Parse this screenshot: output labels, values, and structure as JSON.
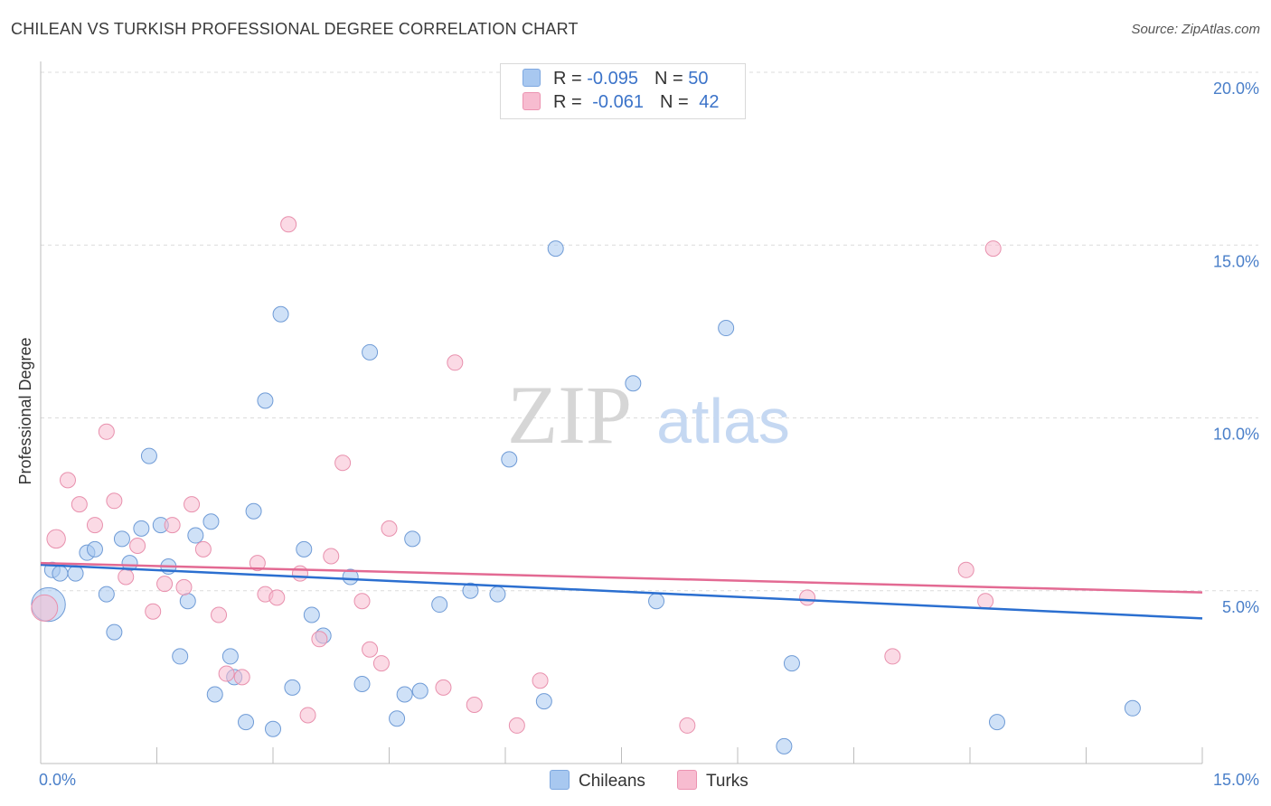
{
  "title": "CHILEAN VS TURKISH PROFESSIONAL DEGREE CORRELATION CHART",
  "source": "Source: ZipAtlas.com",
  "watermark": {
    "zip": "ZIP",
    "atlas": "atlas"
  },
  "legend": {
    "rows": [
      {
        "r_label": "R = ",
        "r_value": "-0.095",
        "n_label": "N = ",
        "n_value": "50",
        "color": "#a8c8f0",
        "border": "#7ea8e0"
      },
      {
        "r_label": "R = ",
        "r_value": "-0.061",
        "n_label": "N = ",
        "n_value": "42",
        "color": "#f7bcd0",
        "border": "#ec93b1"
      }
    ]
  },
  "bottom_legend": {
    "chileans": "Chileans",
    "turks": "Turks"
  },
  "chart_data": {
    "type": "scatter",
    "title": "CHILEAN VS TURKISH PROFESSIONAL DEGREE CORRELATION CHART",
    "ylabel": "Professional Degree",
    "xlabel": "",
    "xlim": [
      0,
      15
    ],
    "ylim": [
      0,
      20
    ],
    "x_tick_labels": [
      {
        "value": 0,
        "label": "0.0%"
      },
      {
        "value": 15,
        "label": "15.0%"
      }
    ],
    "y_tick_labels": [
      {
        "value": 5,
        "label": "5.0%"
      },
      {
        "value": 10,
        "label": "10.0%"
      },
      {
        "value": 15,
        "label": "15.0%"
      },
      {
        "value": 20,
        "label": "20.0%"
      }
    ],
    "series": [
      {
        "name": "Chileans",
        "color": "#a8c8f0",
        "stroke": "#6f9bd6",
        "trend_color": "#2b6fd0",
        "trend": [
          [
            0,
            5.75
          ],
          [
            15,
            4.2
          ]
        ],
        "points": [
          [
            0.1,
            4.6,
            2.2
          ],
          [
            0.15,
            5.6,
            1
          ],
          [
            0.25,
            5.5,
            1
          ],
          [
            0.45,
            5.5,
            1
          ],
          [
            0.6,
            6.1,
            1
          ],
          [
            0.7,
            6.2,
            1
          ],
          [
            0.85,
            4.9,
            1
          ],
          [
            0.95,
            3.8,
            1
          ],
          [
            1.05,
            6.5,
            1
          ],
          [
            1.15,
            5.8,
            1
          ],
          [
            1.3,
            6.8,
            1
          ],
          [
            1.4,
            8.9,
            1
          ],
          [
            1.55,
            6.9,
            1
          ],
          [
            1.65,
            5.7,
            1
          ],
          [
            1.8,
            3.1,
            1
          ],
          [
            1.9,
            4.7,
            1
          ],
          [
            2.0,
            6.6,
            1
          ],
          [
            2.2,
            7.0,
            1
          ],
          [
            2.25,
            2.0,
            1
          ],
          [
            2.45,
            3.1,
            1
          ],
          [
            2.5,
            2.5,
            1
          ],
          [
            2.65,
            1.2,
            1
          ],
          [
            2.75,
            7.3,
            1
          ],
          [
            2.9,
            10.5,
            1
          ],
          [
            3.0,
            1.0,
            1
          ],
          [
            3.1,
            13.0,
            1
          ],
          [
            3.25,
            2.2,
            1
          ],
          [
            3.4,
            6.2,
            1
          ],
          [
            3.5,
            4.3,
            1
          ],
          [
            3.65,
            3.7,
            1
          ],
          [
            4.0,
            5.4,
            1
          ],
          [
            4.15,
            2.3,
            1
          ],
          [
            4.25,
            11.9,
            1
          ],
          [
            4.6,
            1.3,
            1
          ],
          [
            4.7,
            2.0,
            1
          ],
          [
            4.8,
            6.5,
            1
          ],
          [
            4.9,
            2.1,
            1
          ],
          [
            5.15,
            4.6,
            1
          ],
          [
            5.55,
            5.0,
            1
          ],
          [
            5.9,
            4.9,
            1
          ],
          [
            6.05,
            8.8,
            1
          ],
          [
            6.5,
            1.8,
            1
          ],
          [
            6.65,
            14.9,
            1
          ],
          [
            7.65,
            11.0,
            1
          ],
          [
            7.95,
            4.7,
            1
          ],
          [
            8.85,
            12.6,
            1
          ],
          [
            9.7,
            2.9,
            1
          ],
          [
            9.6,
            0.5,
            1
          ],
          [
            12.35,
            1.2,
            1
          ],
          [
            14.1,
            1.6,
            1
          ]
        ]
      },
      {
        "name": "Turks",
        "color": "#f7bcd0",
        "stroke": "#e890ad",
        "trend_color": "#e36a93",
        "trend": [
          [
            0,
            5.8
          ],
          [
            15,
            4.95
          ]
        ],
        "points": [
          [
            0.05,
            4.5,
            1.7
          ],
          [
            0.2,
            6.5,
            1.2
          ],
          [
            0.35,
            8.2,
            1
          ],
          [
            0.5,
            7.5,
            1
          ],
          [
            0.7,
            6.9,
            1
          ],
          [
            0.85,
            9.6,
            1
          ],
          [
            0.95,
            7.6,
            1
          ],
          [
            1.1,
            5.4,
            1
          ],
          [
            1.25,
            6.3,
            1
          ],
          [
            1.45,
            4.4,
            1
          ],
          [
            1.6,
            5.2,
            1
          ],
          [
            1.7,
            6.9,
            1
          ],
          [
            1.85,
            5.1,
            1
          ],
          [
            1.95,
            7.5,
            1
          ],
          [
            2.1,
            6.2,
            1
          ],
          [
            2.3,
            4.3,
            1
          ],
          [
            2.4,
            2.6,
            1
          ],
          [
            2.6,
            2.5,
            1
          ],
          [
            2.8,
            5.8,
            1
          ],
          [
            2.9,
            4.9,
            1
          ],
          [
            3.05,
            4.8,
            1
          ],
          [
            3.2,
            15.6,
            1
          ],
          [
            3.35,
            5.5,
            1
          ],
          [
            3.45,
            1.4,
            1
          ],
          [
            3.6,
            3.6,
            1
          ],
          [
            3.75,
            6.0,
            1
          ],
          [
            3.9,
            8.7,
            1
          ],
          [
            4.15,
            4.7,
            1
          ],
          [
            4.25,
            3.3,
            1
          ],
          [
            4.4,
            2.9,
            1
          ],
          [
            4.5,
            6.8,
            1
          ],
          [
            5.2,
            2.2,
            1
          ],
          [
            5.35,
            11.6,
            1
          ],
          [
            5.6,
            1.7,
            1
          ],
          [
            6.15,
            1.1,
            1
          ],
          [
            6.45,
            2.4,
            1
          ],
          [
            8.35,
            1.1,
            1
          ],
          [
            9.9,
            4.8,
            1
          ],
          [
            11.0,
            3.1,
            1
          ],
          [
            11.95,
            5.6,
            1
          ],
          [
            12.2,
            4.7,
            1
          ],
          [
            12.3,
            14.9,
            1
          ]
        ]
      }
    ]
  }
}
